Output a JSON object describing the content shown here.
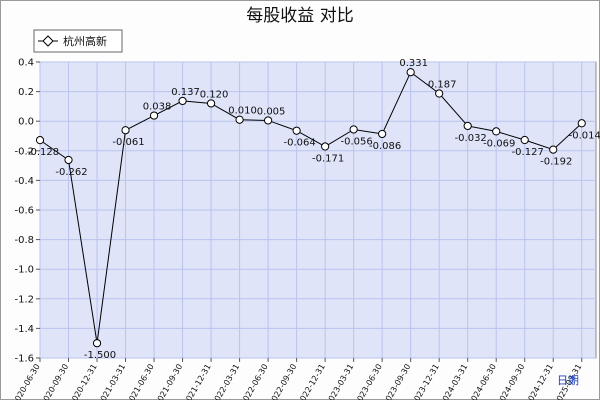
{
  "chart_data": {
    "type": "line",
    "title": "每股收益  对比",
    "x_unit_label": "日期",
    "legend": {
      "position": "top-left"
    },
    "grid": true,
    "ylim": [
      -1.6,
      0.4
    ],
    "y_ticks": [
      0.4,
      0.2,
      0.0,
      -0.2,
      -0.4,
      -0.6,
      -0.8,
      -1.0,
      -1.2,
      -1.4,
      -1.6
    ],
    "y_tick_labels": [
      "0.4",
      "0.2",
      "0.0",
      "-0.2",
      "-0.4",
      "-0.6",
      "-0.8",
      "-1.0",
      "-1.2",
      "-1.4",
      "-1.6"
    ],
    "categories": [
      "2020-06-30",
      "2020-09-30",
      "2020-12-31",
      "2021-03-31",
      "2021-06-30",
      "2021-09-30",
      "2021-12-31",
      "2022-03-31",
      "2022-06-30",
      "2022-09-30",
      "2022-12-31",
      "2023-03-31",
      "2023-06-30",
      "2023-09-30",
      "2023-12-31",
      "2024-03-31",
      "2024-06-30",
      "2024-09-30",
      "2024-12-31",
      "2025-03-31"
    ],
    "series": [
      {
        "name": "杭州高新",
        "values": [
          -0.128,
          -0.262,
          -1.5,
          -0.061,
          0.038,
          0.137,
          0.12,
          0.01,
          0.005,
          -0.064,
          -0.171,
          -0.056,
          -0.086,
          0.331,
          0.187,
          -0.032,
          -0.069,
          -0.127,
          -0.192,
          -0.014
        ],
        "labels": [
          "-0.128",
          "-0.262",
          "-1.500",
          "-0.061",
          "0.038",
          "0.137",
          "0.120",
          "0.010",
          "0.005",
          "-0.064",
          "-0.171",
          "-0.056",
          "-0.086",
          "0.331",
          "0.187",
          "-0.032",
          "-0.069",
          "-0.127",
          "-0.192",
          "-0.014"
        ]
      }
    ],
    "colors": {
      "plot_background": "#dfe4f9",
      "grid": "#b9c3ee",
      "line": "#000000",
      "marker_fill": "#ffffff"
    }
  }
}
